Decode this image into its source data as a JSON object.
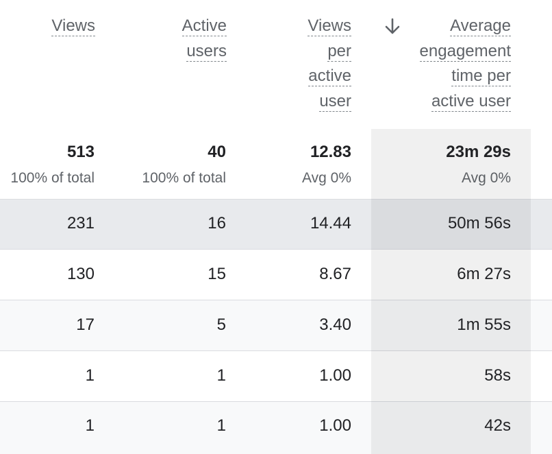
{
  "columns": [
    {
      "key": "views",
      "label_lines": [
        "Views"
      ]
    },
    {
      "key": "active_users",
      "label_lines": [
        "Active",
        "users"
      ]
    },
    {
      "key": "views_per_user",
      "label_lines": [
        "Views",
        "per",
        "active",
        "user"
      ]
    },
    {
      "key": "avg_engagement",
      "label_lines": [
        "Average",
        "engagement",
        "time per",
        "active user"
      ],
      "sorted": "descending"
    }
  ],
  "totals": {
    "views": {
      "value": "513",
      "sub": "100% of total"
    },
    "active_users": {
      "value": "40",
      "sub": "100% of total"
    },
    "views_per_user": {
      "value": "12.83",
      "sub": "Avg 0%"
    },
    "avg_engagement": {
      "value": "23m 29s",
      "sub": "Avg 0%"
    }
  },
  "rows": [
    {
      "views": "231",
      "active_users": "16",
      "views_per_user": "14.44",
      "avg_engagement": "50m 56s"
    },
    {
      "views": "130",
      "active_users": "15",
      "views_per_user": "8.67",
      "avg_engagement": "6m 27s"
    },
    {
      "views": "17",
      "active_users": "5",
      "views_per_user": "3.40",
      "avg_engagement": "1m 55s"
    },
    {
      "views": "1",
      "active_users": "1",
      "views_per_user": "1.00",
      "avg_engagement": "58s"
    },
    {
      "views": "1",
      "active_users": "1",
      "views_per_user": "1.00",
      "avg_engagement": "42s"
    }
  ],
  "icons": {
    "sort": "arrow-down-icon"
  },
  "colors": {
    "header_text": "#5f6368",
    "row_alt": "#f8f9fa",
    "row_hover": "#e8eaed",
    "divider": "#dadce0"
  }
}
